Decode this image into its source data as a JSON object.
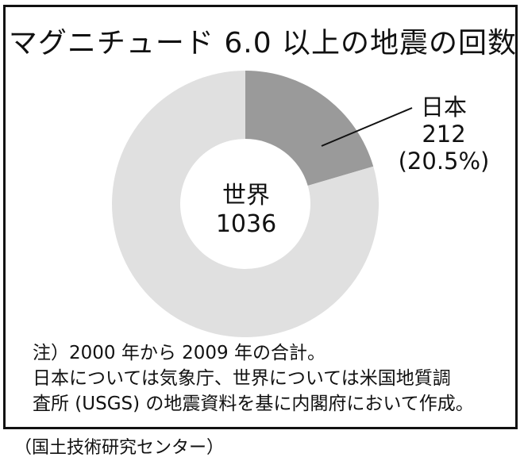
{
  "chart_data": {
    "type": "pie",
    "title": "マグニチュード 6.0 以上の地震の回数",
    "center_label": "世界",
    "total": 1036,
    "slices": [
      {
        "name": "日本",
        "value": 212,
        "percent_label": "(20.5%)",
        "color": "#9a9a9a"
      },
      {
        "name": "",
        "value": 824,
        "percent_label": "",
        "color": "#e0e0e0"
      }
    ]
  },
  "notes": [
    "注）2000 年から 2009 年の合計。",
    "日本については気象庁、世界については米国地質調",
    "査所 (USGS) の地震資料を基に内閣府において作成。"
  ],
  "source": "（国土技術研究センター）"
}
